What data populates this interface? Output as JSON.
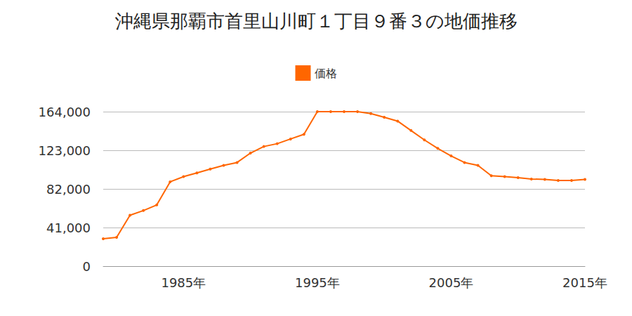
{
  "chart_data": {
    "type": "line",
    "title": "沖縄県那覇市首里山川町１丁目９番３の地価推移",
    "categories": [
      null,
      null,
      null,
      null,
      null,
      null,
      "1985年",
      null,
      null,
      null,
      null,
      null,
      null,
      null,
      null,
      null,
      "1995年",
      null,
      null,
      null,
      null,
      null,
      null,
      null,
      null,
      null,
      "2005年",
      null,
      null,
      null,
      null,
      null,
      null,
      null,
      null,
      null,
      "2015年"
    ],
    "series": [
      {
        "name": "価格",
        "color": "#ff6600",
        "marker": "circle",
        "values": [
          29000,
          30500,
          54000,
          59000,
          65000,
          89500,
          95000,
          99000,
          103000,
          107000,
          110000,
          120000,
          127000,
          130000,
          135000,
          140000,
          164000,
          164000,
          164000,
          164000,
          162000,
          158000,
          154000,
          144000,
          134000,
          125000,
          117000,
          110000,
          107000,
          96000,
          95000,
          94000,
          92500,
          92000,
          91000,
          91000,
          92000
        ]
      }
    ],
    "ylim": [
      0,
      164000
    ],
    "yticks": [
      0,
      {
        "value": 41000,
        "label": "41,000"
      },
      {
        "value": 82000,
        "label": "82,000"
      },
      {
        "value": 123000,
        "label": "123,000"
      },
      {
        "value": 164000,
        "label": "164,000"
      }
    ],
    "grid": true,
    "legend": "top"
  }
}
